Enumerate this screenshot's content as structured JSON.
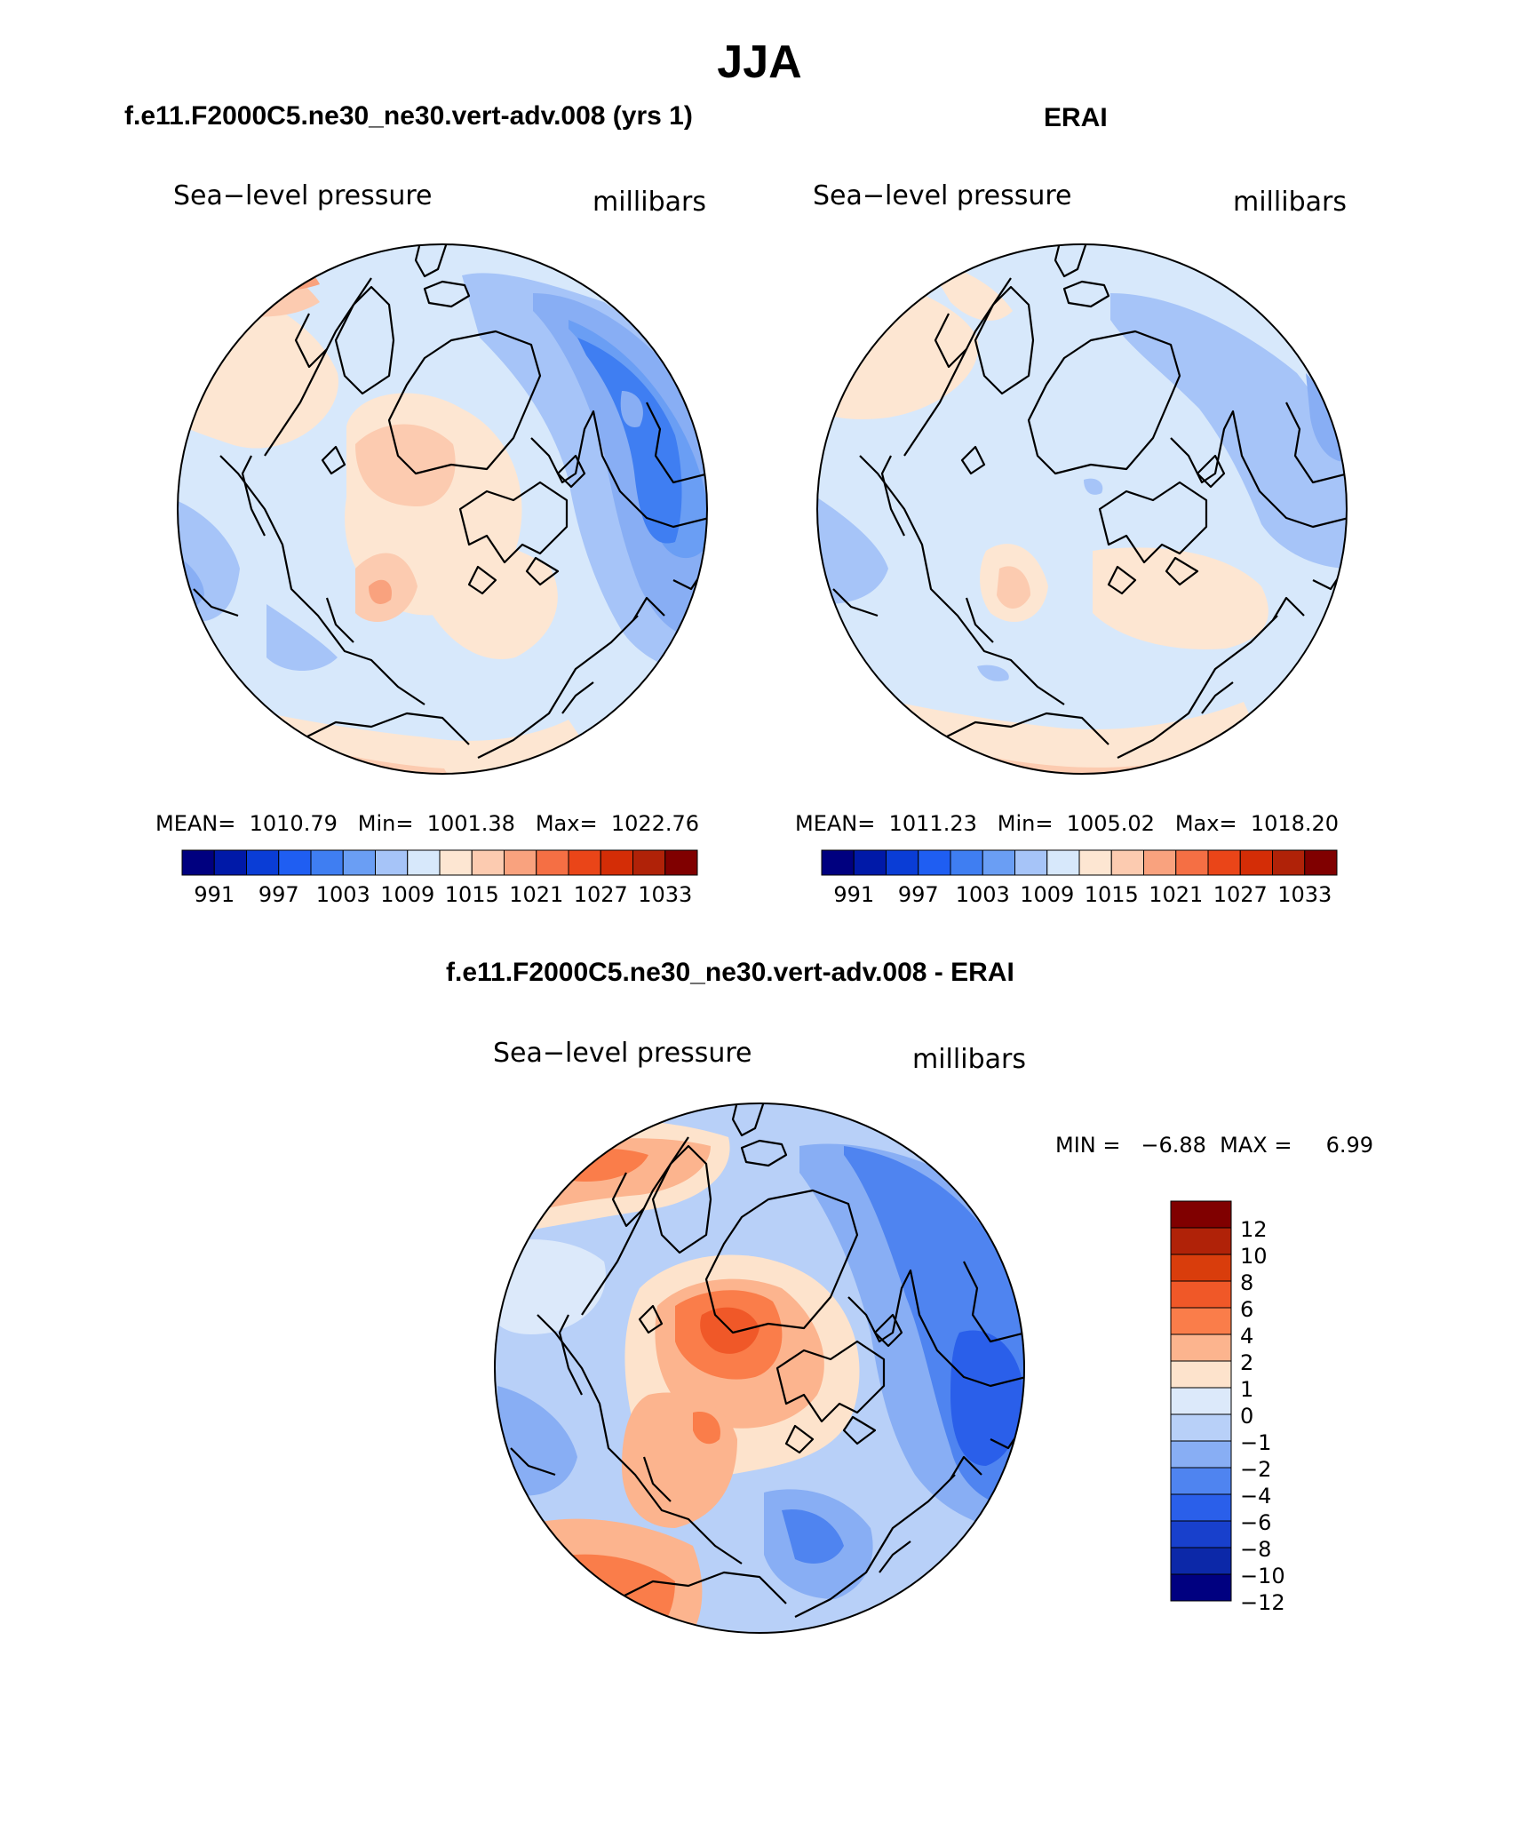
{
  "figure": {
    "title": "JJA"
  },
  "panels": [
    {
      "id": "model",
      "header": "f.e11.F2000C5.ne30_ne30.vert-adv.008 (yrs 1)",
      "left_label": "Sea−level pressure",
      "right_label": "millibars",
      "stats": "MEAN=  1010.79   Min=  1001.38   Max=  1022.76",
      "colorbar_ticks": [
        "991",
        "997",
        "1003",
        "1009",
        "1015",
        "1021",
        "1027",
        "1033"
      ]
    },
    {
      "id": "obs",
      "header": "ERAI",
      "left_label": "Sea−level pressure",
      "right_label": "millibars",
      "stats": "MEAN=  1011.23   Min=  1005.02   Max=  1018.20",
      "colorbar_ticks": [
        "991",
        "997",
        "1003",
        "1009",
        "1015",
        "1021",
        "1027",
        "1033"
      ]
    }
  ],
  "difference": {
    "header": "f.e11.F2000C5.ne30_ne30.vert-adv.008 - ERAI",
    "left_label": "Sea−level pressure",
    "right_label": "millibars",
    "minmax": "MIN =   −6.88  MAX =     6.99",
    "colorbar_ticks": [
      "12",
      "10",
      "8",
      "6",
      "4",
      "2",
      "1",
      "0",
      "−1",
      "−2",
      "−4",
      "−6",
      "−8",
      "−10",
      "−12"
    ]
  },
  "colors": {
    "abs_scale": [
      "#00007f",
      "#0019a8",
      "#0a3dd6",
      "#1f5ef2",
      "#3f7ef2",
      "#6a9ef4",
      "#a6c4f8",
      "#d7e8fb",
      "#fde6d2",
      "#fccbb0",
      "#f9a27e",
      "#f56f44",
      "#ea4518",
      "#d42d06",
      "#b02208",
      "#800000"
    ],
    "diff_scale": [
      "#800000",
      "#b02208",
      "#d93d0c",
      "#f05828",
      "#fa7d4a",
      "#fcb48e",
      "#fde3cc",
      "#dce9fa",
      "#b8d0f8",
      "#88aef4",
      "#4f84f0",
      "#2a5fea",
      "#1840cc",
      "#0c28a8",
      "#000080"
    ],
    "map_bg_blue": "#d7e8fb",
    "map_bg_orange": "#fde6d2"
  }
}
